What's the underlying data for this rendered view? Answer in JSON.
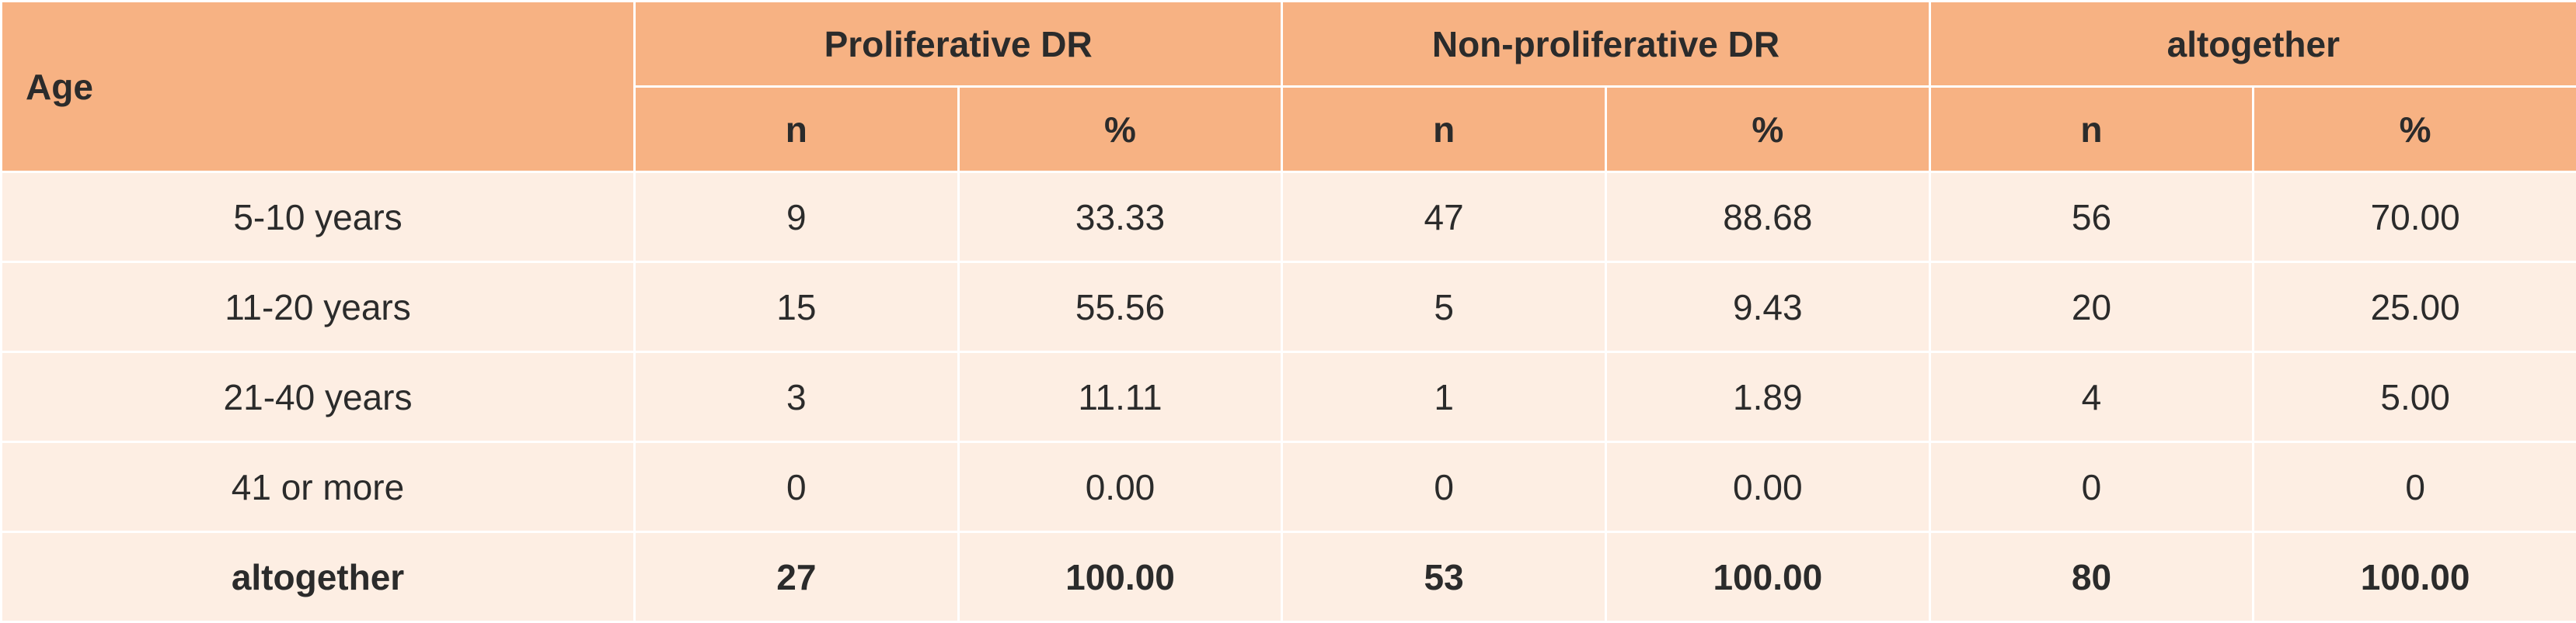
{
  "table": {
    "age_header": "Age",
    "groups": [
      "Proliferative DR",
      "Non-proliferative DR",
      "altogether"
    ],
    "subheaders": [
      "n",
      "%",
      "n",
      "%",
      "n",
      "%"
    ],
    "rows": [
      {
        "label": "5-10 years",
        "cells": [
          "9",
          "33.33",
          "47",
          "88.68",
          "56",
          "70.00"
        ]
      },
      {
        "label": "11-20 years",
        "cells": [
          "15",
          "55.56",
          "5",
          "9.43",
          "20",
          "25.00"
        ]
      },
      {
        "label": "21-40 years",
        "cells": [
          "3",
          "11.11",
          "1",
          "1.89",
          "4",
          "5.00"
        ]
      },
      {
        "label": "41 or more",
        "cells": [
          "0",
          "0.00",
          "0",
          "0.00",
          "0",
          "0"
        ]
      }
    ],
    "total": {
      "label": "altogether",
      "cells": [
        "27",
        "100.00",
        "53",
        "100.00",
        "80",
        "100.00"
      ]
    }
  },
  "colors": {
    "header_bg": "#f7b283",
    "body_bg": "#fdeee3",
    "border": "#ffffff"
  }
}
